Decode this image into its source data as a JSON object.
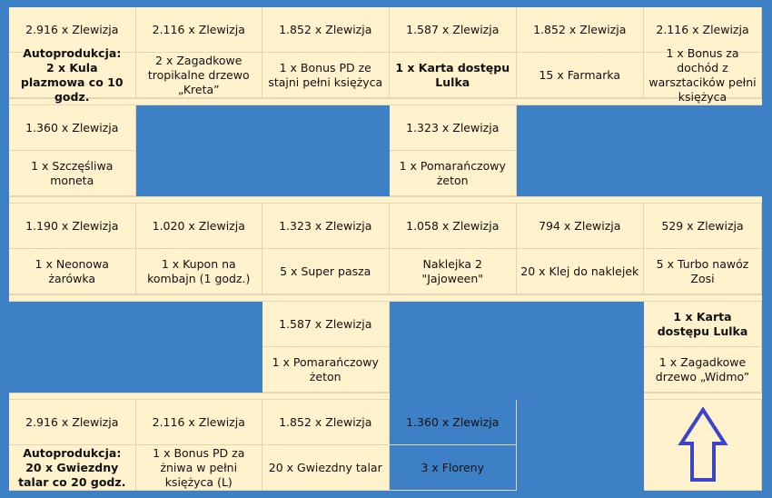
{
  "colors": {
    "background": "#3d80c5",
    "cell": "#fff2cc",
    "arrow": "#3c44cc"
  },
  "rows": [
    [
      {
        "price": "2.916 x Zlewizja",
        "reward": "Autoprodukcja:\n2 x Kula plazmowa co 10 godz.",
        "bold": true
      },
      {
        "price": "2.116 x Zlewizja",
        "reward": "2 x Zagadkowe tropikalne drzewo „Kreta”"
      },
      {
        "price": "1.852 x Zlewizja",
        "reward": "1 x Bonus PD ze stajni pełni księżyca"
      },
      {
        "price": "1.587 x Zlewizja",
        "reward": "1 x Karta dostępu Lulka",
        "bold": true
      },
      {
        "price": "1.852 x Zlewizja",
        "reward": "15 x Farmarka"
      },
      {
        "price": "2.116 x Zlewizja",
        "reward": "1 x Bonus za dochód z warsztacików pełni księżyca"
      }
    ],
    [
      {
        "price": "1.360 x Zlewizja",
        "reward": "1 x Szczęśliwa moneta"
      },
      null,
      null,
      {
        "price": "1.323 x Zlewizja",
        "reward": "1 x Pomarańczowy żeton"
      },
      null,
      null
    ],
    [
      {
        "price": "1.190 x Zlewizja",
        "reward": "1 x Neonowa żarówka"
      },
      {
        "price": "1.020 x Zlewizja",
        "reward": "1 x Kupon na kombajn (1 godz.)"
      },
      {
        "price": "1.323 x Zlewizja",
        "reward": "5 x Super pasza"
      },
      {
        "price": "1.058 x Zlewizja",
        "reward": "Naklejka 2 \"Jajoween\""
      },
      {
        "price": "794 x Zlewizja",
        "reward": "20 x Klej do naklejek"
      },
      {
        "price": "529 x Zlewizja",
        "reward": "5 x Turbo nawóz Zosi"
      }
    ],
    [
      null,
      null,
      {
        "price": "1.587 x Zlewizja",
        "reward": "1 x Pomarańczowy żeton"
      },
      null,
      null,
      {
        "price": "1 x Karta dostępu Lulka",
        "reward": "1 x Zagadkowe drzewo „Widmo”",
        "priceBold": true
      }
    ],
    [
      {
        "price": "2.916 x Zlewizja",
        "reward": "Autoprodukcja:\n20 x Gwiezdny talar co 20 godz.",
        "bold": true
      },
      {
        "price": "2.116 x Zlewizja",
        "reward": "1 x Bonus PD za żniwa w pełni księżyca (L)"
      },
      {
        "price": "1.852 x Zlewizja",
        "reward": "20 x Gwiezdny talar"
      },
      {
        "price": "1.360 x Zlewizja",
        "reward": "3 x Floreny"
      },
      null,
      {
        "icon": "up-arrow-icon"
      }
    ]
  ]
}
